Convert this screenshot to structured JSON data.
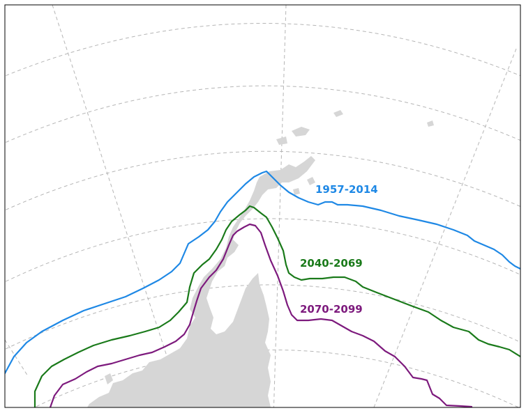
{
  "legend_labels": [
    {
      "key": "p1",
      "text": "1957-2014",
      "color": "#1e88e5"
    },
    {
      "key": "p2",
      "text": "2040-2069",
      "color": "#1a7a1a"
    },
    {
      "key": "p3",
      "text": "2070-2099",
      "color": "#7d1a7d"
    }
  ],
  "colors": {
    "land": "#d6d6d6",
    "graticule": "#b5b5b5",
    "frame": "#000000"
  }
}
